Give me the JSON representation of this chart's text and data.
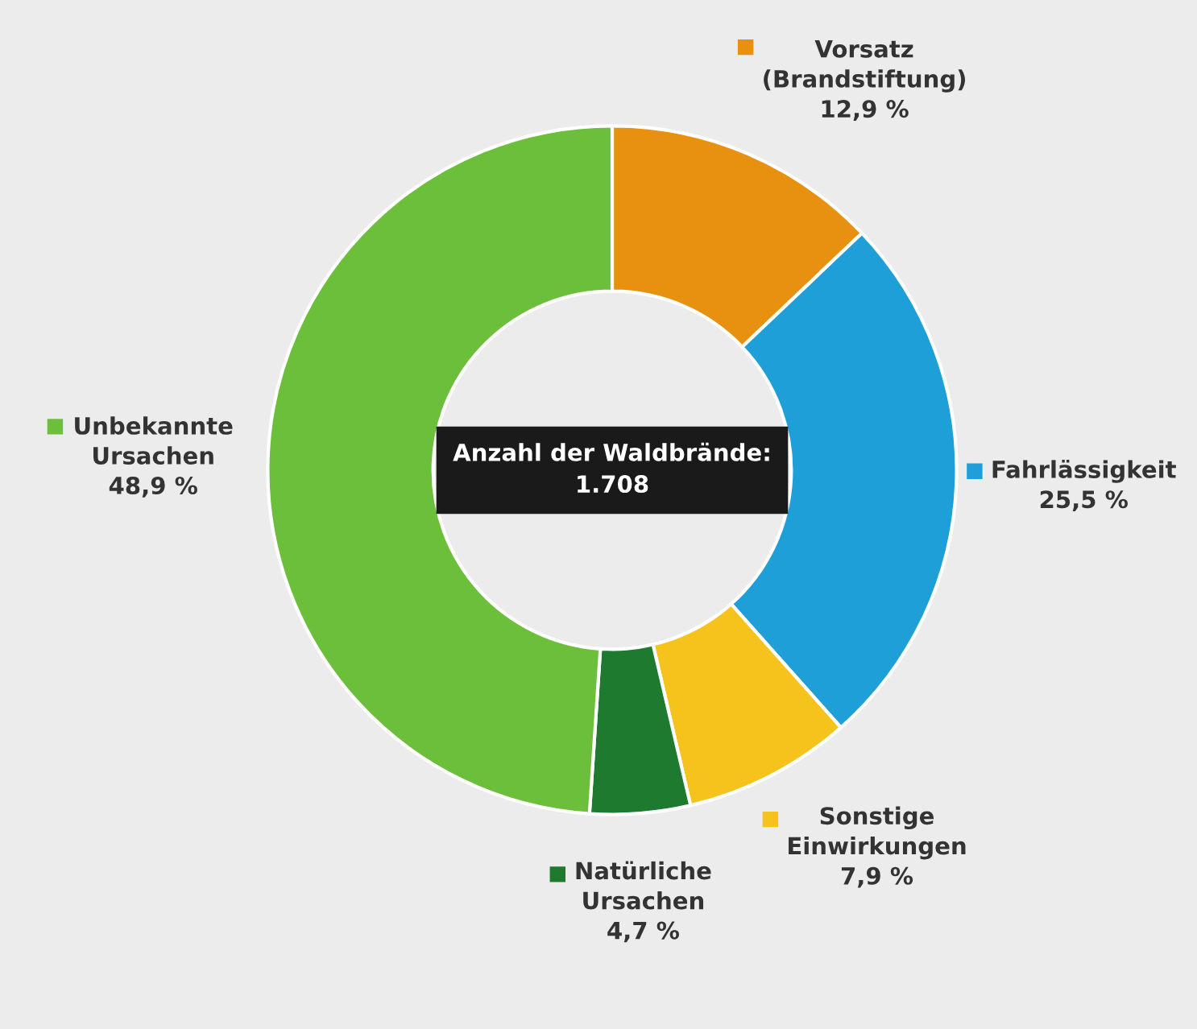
{
  "chart_data": {
    "type": "donut",
    "categories": [
      "Vorsatz\n(Brandstiftung)",
      "Fahrlässigkeit",
      "Sonstige\nEinwirkungen",
      "Natürliche\nUrsachen",
      "Unbekannte\nUrsachen"
    ],
    "values": [
      12.9,
      25.5,
      7.9,
      4.7,
      48.9
    ],
    "value_labels": [
      "12,9 %",
      "25,5 %",
      "7,9 %",
      "4,7 %",
      "48,9 %"
    ],
    "colors": [
      "#e8900f",
      "#1e9fd8",
      "#f5c31c",
      "#1e7a2e",
      "#6cbf3a"
    ],
    "legend": "bottom left",
    "annotations": [
      "Anzahl der Waldbrände:\n1.708"
    ]
  }
}
